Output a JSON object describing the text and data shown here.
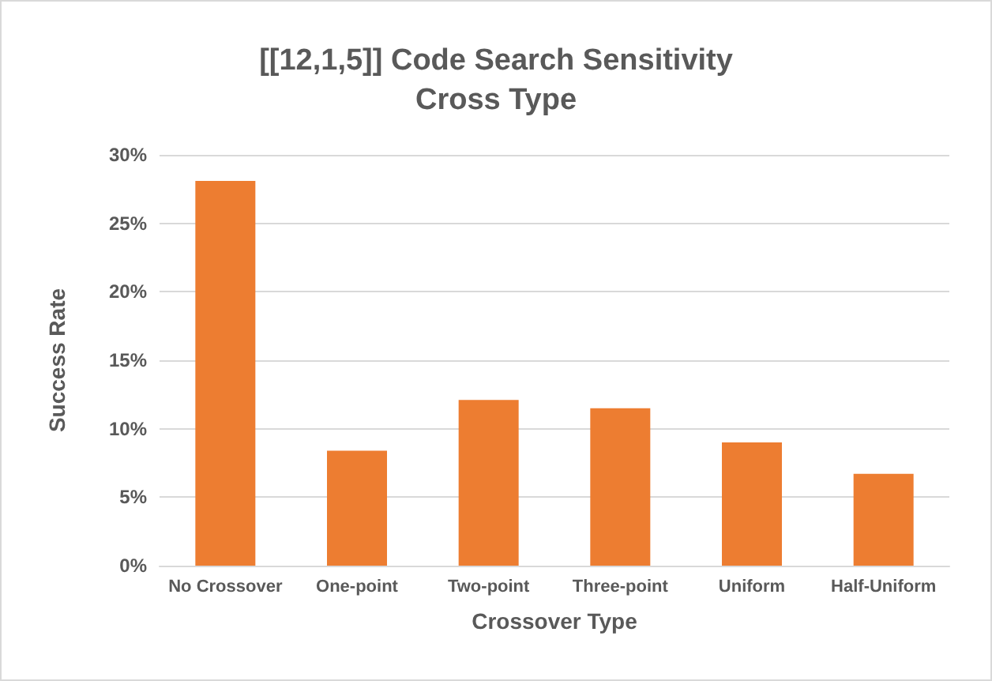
{
  "chart_data": {
    "type": "bar",
    "title": "[[12,1,5]] Code Search Sensitivity\nCross Type",
    "xlabel": "Crossover Type",
    "ylabel": "Success Rate",
    "categories": [
      "No Crossover",
      "One-point",
      "Two-point",
      "Three-point",
      "Uniform",
      "Half-Uniform"
    ],
    "values": [
      28.1,
      8.4,
      12.1,
      11.5,
      9.0,
      6.7
    ],
    "color": "#ed7d31",
    "ylim": [
      0,
      30
    ],
    "yticks": [
      {
        "value": 0,
        "label": "0%"
      },
      {
        "value": 5,
        "label": "5%"
      },
      {
        "value": 10,
        "label": "10%"
      },
      {
        "value": 15,
        "label": "15%"
      },
      {
        "value": 20,
        "label": "20%"
      },
      {
        "value": 25,
        "label": "25%"
      },
      {
        "value": 30,
        "label": "30%"
      }
    ],
    "grid": "y"
  }
}
